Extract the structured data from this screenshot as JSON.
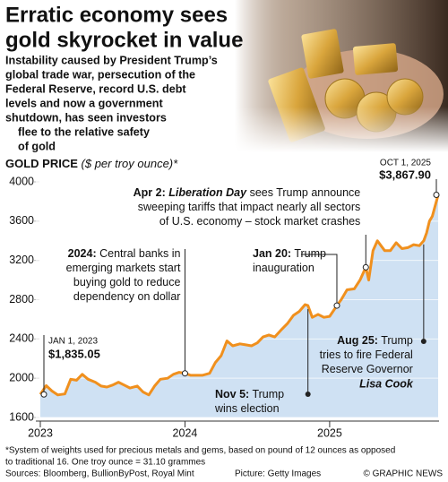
{
  "title_lines": [
    "Erratic economy sees",
    "gold skyrocket in value"
  ],
  "subtitle_lines": [
    "Instability caused by President Trump’s",
    "global trade war, persecution of the",
    "Federal Reserve, record U.S. debt",
    "levels and now a government",
    "shutdown, has seen investors",
    "flee to the relative safety",
    "of gold"
  ],
  "chart_data": {
    "type": "line",
    "ylabel": "GOLD PRICE",
    "yunit": "($ per troy ounce)*",
    "x": [
      2023.0,
      2023.04,
      2023.08,
      2023.12,
      2023.17,
      2023.21,
      2023.25,
      2023.29,
      2023.33,
      2023.38,
      2023.42,
      2023.46,
      2023.5,
      2023.54,
      2023.58,
      2023.62,
      2023.67,
      2023.71,
      2023.75,
      2023.79,
      2023.83,
      2023.88,
      2023.92,
      2023.96,
      2024.0,
      2024.04,
      2024.08,
      2024.12,
      2024.17,
      2024.21,
      2024.25,
      2024.29,
      2024.33,
      2024.38,
      2024.42,
      2024.46,
      2024.5,
      2024.54,
      2024.58,
      2024.62,
      2024.67,
      2024.71,
      2024.75,
      2024.79,
      2024.83,
      2024.85,
      2024.88,
      2024.92,
      2024.96,
      2025.0,
      2025.05,
      2025.08,
      2025.12,
      2025.17,
      2025.21,
      2025.25,
      2025.27,
      2025.3,
      2025.33,
      2025.38,
      2025.42,
      2025.46,
      2025.5,
      2025.54,
      2025.58,
      2025.62,
      2025.65,
      2025.67,
      2025.69,
      2025.71,
      2025.73,
      2025.75
    ],
    "values": [
      1835.05,
      1925,
      1870,
      1830,
      1840,
      1990,
      1980,
      2040,
      1990,
      1960,
      1920,
      1910,
      1930,
      1960,
      1930,
      1900,
      1920,
      1860,
      1830,
      1920,
      1990,
      2000,
      2040,
      2060,
      2050,
      2030,
      2030,
      2030,
      2050,
      2160,
      2230,
      2380,
      2330,
      2350,
      2340,
      2330,
      2360,
      2420,
      2440,
      2420,
      2500,
      2560,
      2640,
      2680,
      2750,
      2740,
      2620,
      2650,
      2620,
      2630,
      2740,
      2800,
      2900,
      2910,
      3000,
      3130,
      3000,
      3300,
      3400,
      3300,
      3300,
      3380,
      3320,
      3330,
      3360,
      3350,
      3400,
      3480,
      3600,
      3650,
      3760,
      3867.9
    ],
    "color": "#f0901e",
    "area_color": "#cfe1f3",
    "xlim": [
      2023,
      2025.75
    ],
    "xticks": [
      2023,
      2024,
      2025
    ],
    "ylim": [
      1600,
      4000
    ],
    "yticks": [
      1600,
      2000,
      2400,
      2800,
      3200,
      3600,
      4000
    ],
    "grid": true,
    "annotations": [
      {
        "x": 2023.0,
        "value": 1835.05,
        "date": "JAN 1, 2023",
        "label": "$1,835.05"
      },
      {
        "x": 2025.75,
        "value": 3867.9,
        "date": "OCT 1, 2025",
        "label": "$3,867.90"
      },
      {
        "x": 2024.0,
        "value": 2050,
        "head": "2024:",
        "lines": [
          "Central banks in",
          "emerging markets start",
          "buying gold to reduce",
          "dependency on dollar"
        ]
      },
      {
        "x": 2025.05,
        "value": 2740,
        "head": "Jan 20:",
        "lines": [
          "Trump",
          "inauguration"
        ]
      },
      {
        "x": 2025.25,
        "value": 3130,
        "head": "Apr 2:",
        "emph": "Liberation Day",
        "lines": [
          "sees Trump announce",
          "sweeping tariffs that impact nearly all sectors",
          "of U.S. economy – stock market crashes"
        ]
      },
      {
        "x": 2024.85,
        "head": "Nov 5:",
        "lines": [
          "Trump",
          "wins election"
        ]
      },
      {
        "x": 2025.65,
        "head": "Aug 25:",
        "lines": [
          "Trump",
          "tries to fire Federal",
          "Reserve Governor"
        ],
        "emph": "Lisa Cook"
      }
    ]
  },
  "footnote_lines": [
    "*System of weights used for precious metals and gems, based on pound of 12 ounces as opposed",
    "to traditional 16. One troy ounce = 31.10 grammes"
  ],
  "sources": "Sources: Bloomberg, BullionByPost, Royal Mint",
  "credit": "Picture: Getty Images",
  "brand": "© GRAPHIC NEWS"
}
